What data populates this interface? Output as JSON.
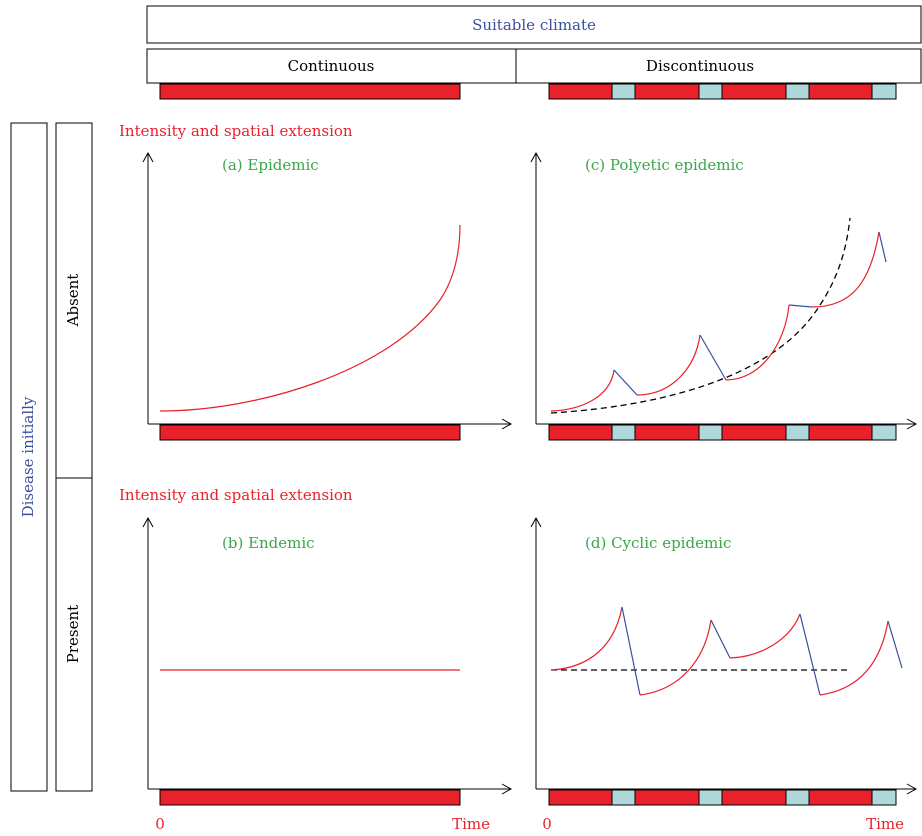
{
  "header": {
    "top": "Suitable climate",
    "left": "Continuous",
    "right": "Discontinuous"
  },
  "row_labels": {
    "side": "Disease initially",
    "absent": "Absent",
    "present": "Present"
  },
  "y_axis_label": "Intensity and spatial extension",
  "panels": {
    "a": "(a) Epidemic",
    "b": "(b) Endemic",
    "c": "(c) Polyetic epidemic",
    "d": "(d) Cyclic epidemic"
  },
  "x_axis": {
    "origin": "0",
    "end": "Time"
  },
  "colors": {
    "blue_text": "#3b4fa0",
    "green_text": "#3aa64a",
    "red": "#e8212b",
    "light_blue": "#aed8da",
    "curve_red": "#e8212b",
    "drop_blue": "#3b4fa0"
  }
}
